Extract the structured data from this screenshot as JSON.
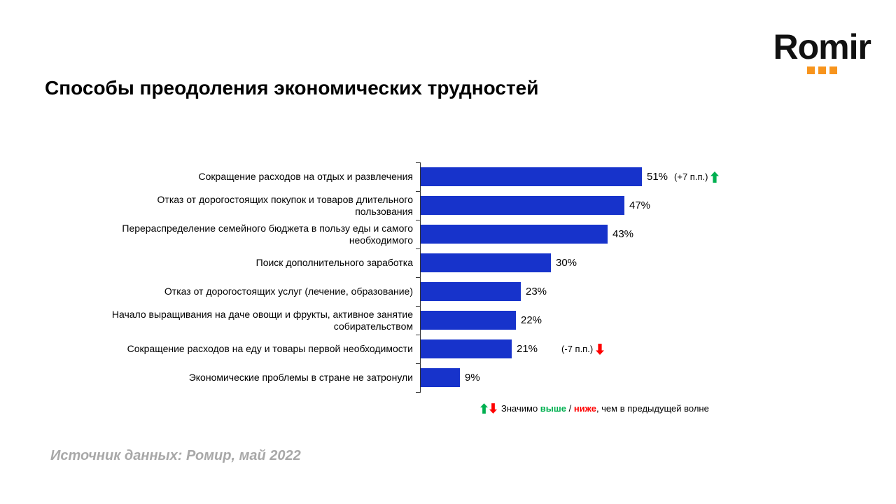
{
  "logo": {
    "text": "Romir"
  },
  "title": "Способы преодоления экономических трудностей",
  "source": "Источник данных: Ромир, май 2022",
  "legend": {
    "prefix": "Значимо ",
    "higher": "выше",
    "separator": " / ",
    "lower": "ниже",
    "suffix": ", чем в предыдущей волне"
  },
  "colors": {
    "bar": "#1733cb",
    "up": "#00b050",
    "down": "#ff0000",
    "logo_accent": "#f7941d",
    "source_text": "#a8a8a8"
  },
  "chart_data": {
    "type": "bar",
    "orientation": "horizontal",
    "title": "Способы преодоления экономических трудностей",
    "value_suffix": "%",
    "xlim": [
      0,
      60
    ],
    "grid": false,
    "categories": [
      "Сокращение расходов на отдых и развлечения",
      "Отказ от дорогостоящих покупок и товаров длительного пользования",
      "Перераспределение семейного бюджета в пользу еды и самого необходимого",
      "Поиск дополнительного заработка",
      "Отказ от дорогостоящих услуг (лечение, образование)",
      "Начало выращивания на даче овощи и фрукты, активное занятие собирательством",
      "Сокращение расходов на еду и товары первой необходимости",
      "Экономические проблемы в стране не затронули"
    ],
    "values": [
      51,
      47,
      43,
      30,
      23,
      22,
      21,
      9
    ],
    "annotations": [
      {
        "index": 0,
        "text": "(+7 п.п.)",
        "direction": "up"
      },
      {
        "index": 6,
        "text": "(-7 п.п.)",
        "direction": "down"
      }
    ]
  }
}
